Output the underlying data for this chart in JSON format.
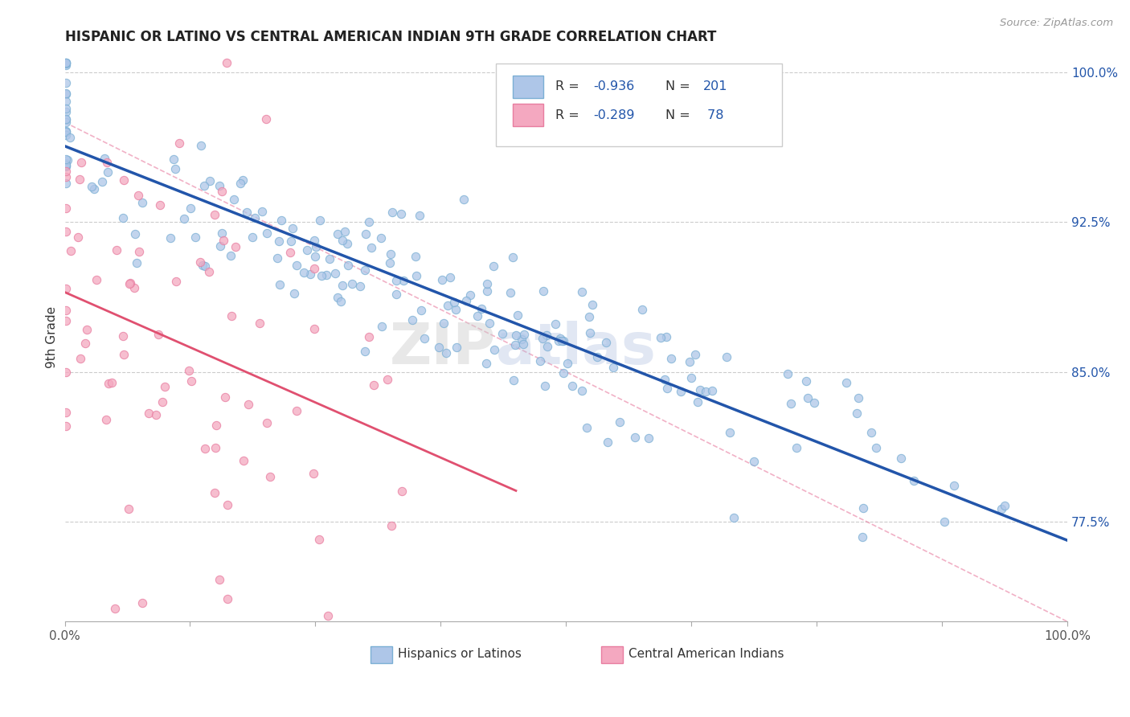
{
  "title": "HISPANIC OR LATINO VS CENTRAL AMERICAN INDIAN 9TH GRADE CORRELATION CHART",
  "source": "Source: ZipAtlas.com",
  "ylabel": "9th Grade",
  "right_yticks": [
    "77.5%",
    "85.0%",
    "92.5%",
    "100.0%"
  ],
  "right_ytick_vals": [
    0.775,
    0.85,
    0.925,
    1.0
  ],
  "blue_color": "#AEC6E8",
  "pink_color": "#F4A8C0",
  "blue_edge_color": "#7BAFD4",
  "pink_edge_color": "#E87DA0",
  "blue_line_color": "#2255AA",
  "pink_line_color": "#E05070",
  "diag_line_color": "#E87DA0",
  "watermark_zip": "ZIP",
  "watermark_atlas": "atlas",
  "blue_R": -0.936,
  "pink_R": -0.289,
  "blue_N": 201,
  "pink_N": 78,
  "xlim": [
    0.0,
    1.0
  ],
  "ylim": [
    0.725,
    1.01
  ],
  "legend_text_color": "#2255AA",
  "legend_R_color": "#E05070"
}
